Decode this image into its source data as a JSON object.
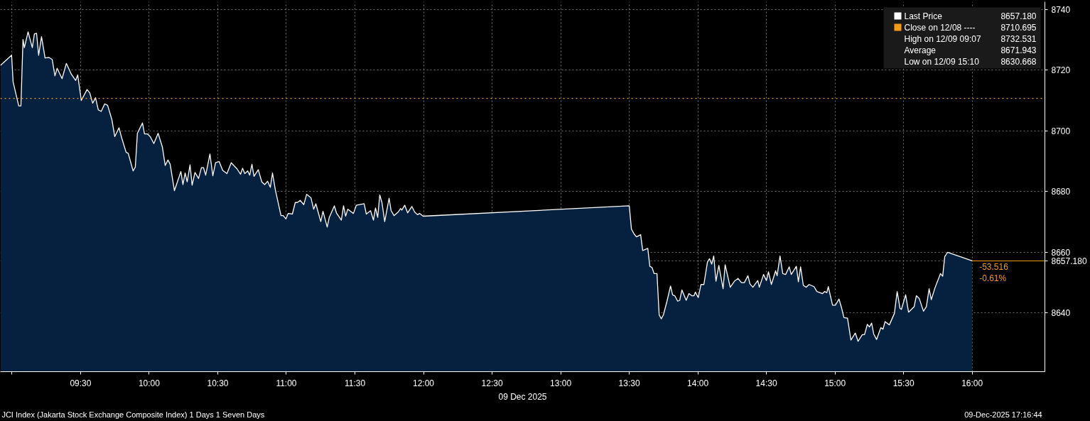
{
  "chart_data": {
    "type": "area",
    "title": "JCI Index (Jakarta Stock Exchange Composite Index) 1 Days 1 Seven Days",
    "subtitle": "09-Dec-2025 17:16:44",
    "xlabel": "09 Dec 2025",
    "x": [
      8.915,
      8.997,
      9.008,
      9.049,
      9.065,
      9.08,
      9.09,
      9.117,
      9.148,
      9.163,
      9.179,
      9.194,
      9.215,
      9.241,
      9.267,
      9.293,
      9.313,
      9.329,
      9.365,
      9.396,
      9.433,
      9.464,
      9.479,
      9.505,
      9.547,
      9.567,
      9.588,
      9.609,
      9.629,
      9.65,
      9.676,
      9.697,
      9.728,
      9.749,
      9.78,
      9.8,
      9.832,
      9.847,
      9.883,
      9.899,
      9.914,
      9.951,
      9.966,
      9.987,
      10.008,
      10.034,
      10.065,
      10.096,
      10.117,
      10.137,
      10.153,
      10.184,
      10.199,
      10.231,
      10.246,
      10.262,
      10.277,
      10.298,
      10.313,
      10.334,
      10.36,
      10.381,
      10.396,
      10.412,
      10.443,
      10.464,
      10.484,
      10.51,
      10.536,
      10.567,
      10.598,
      10.64,
      10.666,
      10.681,
      10.697,
      10.718,
      10.733,
      10.749,
      10.764,
      10.795,
      10.821,
      10.842,
      10.863,
      10.883,
      10.899,
      10.92,
      10.961,
      10.977,
      10.997,
      11.013,
      11.044,
      11.065,
      11.08,
      11.101,
      11.127,
      11.148,
      11.179,
      11.199,
      11.215,
      11.251,
      11.267,
      11.298,
      11.313,
      11.35,
      11.365,
      11.401,
      11.417,
      11.432,
      11.448,
      11.489,
      11.51,
      11.567,
      11.583,
      11.614,
      11.635,
      11.65,
      11.666,
      11.681,
      11.697,
      11.717,
      11.749,
      11.764,
      11.785,
      11.816,
      11.832,
      11.842,
      11.863,
      11.884,
      11.915,
      11.935,
      11.956,
      11.972,
      11.997,
      13.5,
      13.516,
      13.536,
      13.552,
      13.583,
      13.598,
      13.635,
      13.65,
      13.666,
      13.681,
      13.702,
      13.718,
      13.733,
      13.749,
      13.775,
      13.801,
      13.816,
      13.832,
      13.853,
      13.868,
      13.884,
      13.915,
      13.935,
      13.956,
      13.972,
      13.982,
      14.003,
      14.023,
      14.044,
      14.07,
      14.085,
      14.101,
      14.116,
      14.132,
      14.153,
      14.184,
      14.199,
      14.236,
      14.267,
      14.293,
      14.318,
      14.339,
      14.365,
      14.38,
      14.401,
      14.437,
      14.448,
      14.479,
      14.5,
      14.515,
      14.536,
      14.567,
      14.578,
      14.599,
      14.619,
      14.64,
      14.666,
      14.681,
      14.718,
      14.733,
      14.749,
      14.769,
      14.79,
      14.811,
      14.847,
      14.868,
      14.909,
      14.925,
      14.94,
      14.951,
      14.982,
      15.003,
      15.029,
      15.049,
      15.065,
      15.091,
      15.116,
      15.148,
      15.168,
      15.199,
      15.215,
      15.236,
      15.251,
      15.267,
      15.282,
      15.303,
      15.334,
      15.35,
      15.365,
      15.396,
      15.433,
      15.453,
      15.474,
      15.484,
      15.515,
      15.536,
      15.577,
      15.593,
      15.614,
      15.645,
      15.666,
      15.686,
      15.702,
      15.728,
      15.769,
      15.785,
      15.8,
      15.821,
      16.0
    ],
    "series": [
      {
        "name": "Last Price",
        "color": "#ffffff",
        "values": [
          8721.5,
          8724.9,
          8716.1,
          8708.2,
          8708.2,
          8730.1,
          8727.4,
          8732.6,
          8727.4,
          8731.9,
          8732.1,
          8724.9,
          8731.0,
          8724.0,
          8724.2,
          8723.5,
          8718.1,
          8720.6,
          8717.2,
          8722.2,
          8718.6,
          8716.6,
          8718.4,
          8710.0,
          8713.6,
          8712.5,
          8709.1,
          8710.9,
          8706.9,
          8706.4,
          8708.9,
          8708.4,
          8703.7,
          8698.1,
          8701.0,
          8697.6,
          8692.9,
          8692.6,
          8686.8,
          8688.1,
          8699.2,
          8702.6,
          8699.0,
          8699.0,
          8698.1,
          8695.8,
          8699.2,
          8694.7,
          8688.6,
          8690.4,
          8689.0,
          8680.3,
          8682.3,
          8686.6,
          8682.3,
          8686.1,
          8683.2,
          8688.8,
          8682.1,
          8686.3,
          8684.3,
          8687.9,
          8687.9,
          8685.4,
          8692.4,
          8685.2,
          8689.5,
          8689.9,
          8687.0,
          8685.9,
          8689.5,
          8687.5,
          8685.7,
          8687.7,
          8685.9,
          8686.8,
          8685.4,
          8689.0,
          8685.0,
          8687.2,
          8683.2,
          8682.3,
          8683.4,
          8681.4,
          8686.1,
          8680.5,
          8672.1,
          8672.1,
          8671.0,
          8672.8,
          8672.6,
          8676.4,
          8676.4,
          8677.1,
          8675.7,
          8679.1,
          8678.0,
          8674.2,
          8676.0,
          8670.1,
          8673.5,
          8668.3,
          8671.5,
          8675.3,
          8673.0,
          8670.6,
          8675.3,
          8671.9,
          8674.2,
          8672.8,
          8675.5,
          8676.0,
          8672.6,
          8673.7,
          8670.6,
          8674.6,
          8671.5,
          8678.9,
          8676.4,
          8670.1,
          8677.8,
          8673.7,
          8672.1,
          8673.3,
          8674.4,
          8673.9,
          8675.5,
          8673.0,
          8675.1,
          8673.3,
          8672.4,
          8672.8,
          8671.9,
          8675.3,
          8667.6,
          8666.0,
          8665.1,
          8665.8,
          8660.6,
          8661.3,
          8655.4,
          8655.0,
          8653.0,
          8653.0,
          8639.4,
          8638.1,
          8639.4,
          8643.9,
          8648.9,
          8646.0,
          8645.7,
          8643.9,
          8644.2,
          8647.6,
          8644.2,
          8646.4,
          8645.7,
          8645.7,
          8646.9,
          8645.1,
          8649.4,
          8649.4,
          8656.8,
          8657.9,
          8656.1,
          8658.8,
          8650.5,
          8655.7,
          8648.0,
          8655.9,
          8648.5,
          8650.5,
          8651.4,
          8650.0,
          8650.0,
          8652.3,
          8649.6,
          8648.5,
          8650.7,
          8648.5,
          8652.7,
          8650.7,
          8653.6,
          8649.4,
          8653.9,
          8652.3,
          8658.8,
          8653.0,
          8652.7,
          8655.2,
          8652.7,
          8655.4,
          8650.3,
          8655.2,
          8649.1,
          8648.5,
          8649.4,
          8648.7,
          8647.1,
          8646.4,
          8647.1,
          8646.7,
          8648.7,
          8642.6,
          8642.6,
          8644.6,
          8641.5,
          8638.5,
          8638.3,
          8631.1,
          8633.4,
          8630.7,
          8632.9,
          8632.9,
          8636.3,
          8635.4,
          8636.7,
          8633.1,
          8631.3,
          8635.2,
          8634.7,
          8637.2,
          8636.1,
          8639.9,
          8647.1,
          8641.5,
          8641.2,
          8646.0,
          8640.3,
          8642.1,
          8645.7,
          8644.8,
          8640.6,
          8642.1,
          8648.0,
          8644.4,
          8648.2,
          8653.0,
          8652.1,
          8658.6,
          8660.0,
          8657.2
        ]
      }
    ],
    "ref_lines": [
      {
        "axis": "y",
        "value": 8710.695,
        "label": "Close on 12/08 ----",
        "color": "#f39c12",
        "line_style": "dotted"
      }
    ],
    "annotations": [
      "8657.180",
      "8710.695",
      "High on 12/09 09:07",
      "8732.531",
      "Average",
      "8671.943",
      "Low on 12/09 15:10",
      "8630.668",
      {
        "text": "-53.516",
        "x": 16.0,
        "y": 8657.18
      },
      {
        "text": "-0.61%",
        "x": 16.0,
        "y": 8657.18
      }
    ],
    "xlim": [
      8.915,
      16.53
    ],
    "ylim": [
      8620.7,
      8742.5
    ],
    "xticks": [
      {
        "value": 9.0,
        "label": null
      },
      {
        "value": 9.5,
        "label": "09:30"
      },
      {
        "value": 10.0,
        "label": "10:00"
      },
      {
        "value": 10.5,
        "label": "10:30"
      },
      {
        "value": 11.0,
        "label": "11:00"
      },
      {
        "value": 11.5,
        "label": "11:30"
      },
      {
        "value": 12.0,
        "label": "12:00"
      },
      {
        "value": 12.5,
        "label": "12:30"
      },
      {
        "value": 13.0,
        "label": "13:00"
      },
      {
        "value": 13.5,
        "label": "13:30"
      },
      {
        "value": 14.0,
        "label": "14:00"
      },
      {
        "value": 14.5,
        "label": "14:30"
      },
      {
        "value": 15.0,
        "label": "15:00"
      },
      {
        "value": 15.5,
        "label": "15:30"
      },
      {
        "value": 16.0,
        "label": "16:00"
      }
    ],
    "yticks": [
      8640,
      {
        "value": 8657.18,
        "label": "8657.180"
      },
      8660,
      8680,
      8700,
      8720,
      8740
    ],
    "grid": true,
    "legend": "top right",
    "line_style": "solid",
    "marker": "none"
  }
}
